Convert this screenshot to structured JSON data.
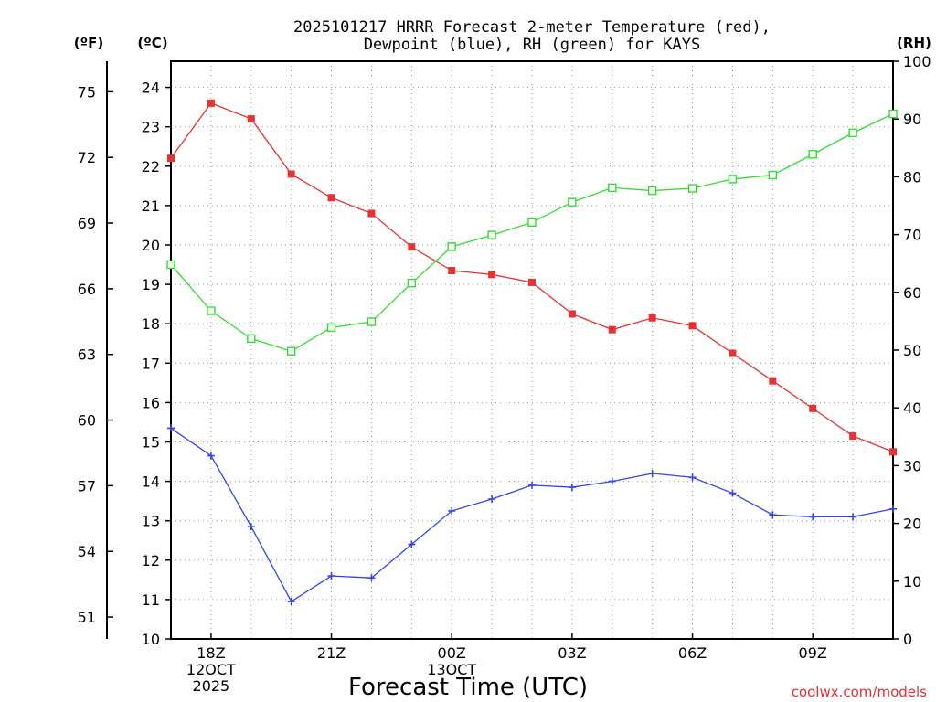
{
  "chart_data": {
    "type": "line",
    "title": "2025101217 HRRR Forecast 2-meter Temperature (red),",
    "subtitle": "Dewpoint (blue), RH (green) for KAYS",
    "xlabel": "Forecast Time (UTC)",
    "credit": "coolwx.com/models",
    "unit_f": "(ºF)",
    "unit_c": "(ºC)",
    "unit_rh": "(RH)",
    "x_hours": [
      17,
      18,
      19,
      20,
      21,
      22,
      23,
      24,
      25,
      26,
      27,
      28,
      29,
      30,
      31,
      32,
      33,
      34,
      35
    ],
    "x_range": [
      17,
      35
    ],
    "x_ticks": [
      {
        "hour": 18,
        "lines": [
          "18Z",
          "12OCT",
          "2025"
        ]
      },
      {
        "hour": 21,
        "lines": [
          "21Z"
        ]
      },
      {
        "hour": 24,
        "lines": [
          "00Z",
          "13OCT"
        ]
      },
      {
        "hour": 27,
        "lines": [
          "03Z"
        ]
      },
      {
        "hour": 30,
        "lines": [
          "06Z"
        ]
      },
      {
        "hour": 33,
        "lines": [
          "09Z"
        ]
      }
    ],
    "ylim_c": [
      10,
      24.6
    ],
    "yticks_c": [
      "10",
      "11",
      "12",
      "13",
      "14",
      "15",
      "16",
      "17",
      "18",
      "19",
      "20",
      "21",
      "22",
      "23",
      "24"
    ],
    "yticks_f": [
      "51",
      "54",
      "57",
      "60",
      "63",
      "66",
      "69",
      "72",
      "75"
    ],
    "ylim_rh": [
      0,
      100
    ],
    "yticks_rh": [
      "0",
      "10",
      "20",
      "30",
      "40",
      "50",
      "60",
      "70",
      "80",
      "90",
      "100"
    ],
    "series": [
      {
        "name": "Temperature",
        "axis": "c",
        "color": "#e63232",
        "marker": "filled-square",
        "values": [
          22.2,
          23.6,
          23.2,
          21.8,
          21.2,
          20.8,
          19.95,
          19.35,
          19.25,
          19.05,
          18.25,
          17.85,
          18.15,
          17.95,
          17.25,
          16.55,
          15.85,
          15.15,
          14.75
        ]
      },
      {
        "name": "Dewpoint",
        "axis": "c",
        "color": "#3246e6",
        "marker": "plus",
        "values": [
          15.35,
          14.65,
          12.85,
          10.95,
          11.6,
          11.55,
          12.4,
          13.25,
          13.55,
          13.9,
          13.85,
          14.0,
          14.2,
          14.1,
          13.7,
          13.15,
          13.1,
          13.1,
          13.3
        ]
      },
      {
        "name": "RH",
        "axis": "rh",
        "color": "#32dc32",
        "marker": "open-square",
        "values": [
          64.8,
          56.8,
          52.0,
          49.8,
          53.9,
          54.9,
          61.6,
          67.9,
          69.9,
          72.1,
          75.6,
          78.1,
          77.6,
          78.0,
          79.6,
          80.3,
          83.9,
          87.6,
          90.9
        ]
      }
    ]
  }
}
